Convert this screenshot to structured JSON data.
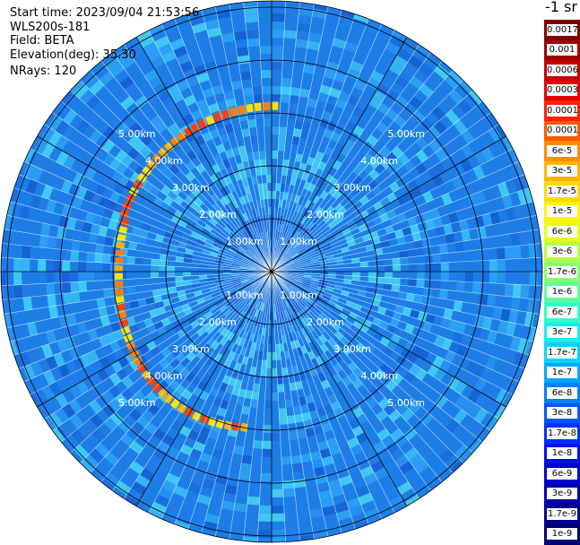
{
  "info": {
    "start_time": "Start time: 2023/09/04 21:53:56",
    "instrument": "WLS200s-181",
    "field": "Field: BETA",
    "elevation": "Elevation(deg): 35.30",
    "nrays": "NRays: 120"
  },
  "colorbar": {
    "title": "-1 sr",
    "ticks": [
      "0.0017",
      "0.001",
      "0.0006",
      "0.0003",
      "0.00017",
      "0.0001",
      "6e-5",
      "3e-5",
      "1.7e-5",
      "1e-5",
      "6e-6",
      "3e-6",
      "1.7e-6",
      "1e-6",
      "6e-7",
      "3e-7",
      "1.7e-7",
      "1e-7",
      "6e-8",
      "3e-8",
      "1.7e-8",
      "1e-8",
      "6e-9",
      "3e-9",
      "1.7e-9",
      "1e-9"
    ],
    "colors": [
      "#7f0000",
      "#a00000",
      "#c40000",
      "#e80000",
      "#ff2000",
      "#ff5800",
      "#ff8c00",
      "#ffb400",
      "#ffd800",
      "#fff400",
      "#e4ff14",
      "#b4ff44",
      "#88ff70",
      "#5cff9c",
      "#30ffc8",
      "#10f0f0",
      "#00d4ff",
      "#00a8ff",
      "#0080ff",
      "#0058ff",
      "#0030ff",
      "#0010f0",
      "#0000d0",
      "#0000b0",
      "#000090",
      "#000070"
    ]
  },
  "range_labels": [
    {
      "text": "1.00km"
    },
    {
      "text": "2.00km"
    },
    {
      "text": "3.00km"
    },
    {
      "text": "4.00km"
    },
    {
      "text": "5.00km"
    }
  ],
  "chart_data": {
    "type": "heatmap",
    "title": "",
    "rings_km": [
      1,
      2,
      3,
      4,
      5
    ],
    "n_rays": 120,
    "field": "BETA",
    "elevation_deg": 35.3
  }
}
